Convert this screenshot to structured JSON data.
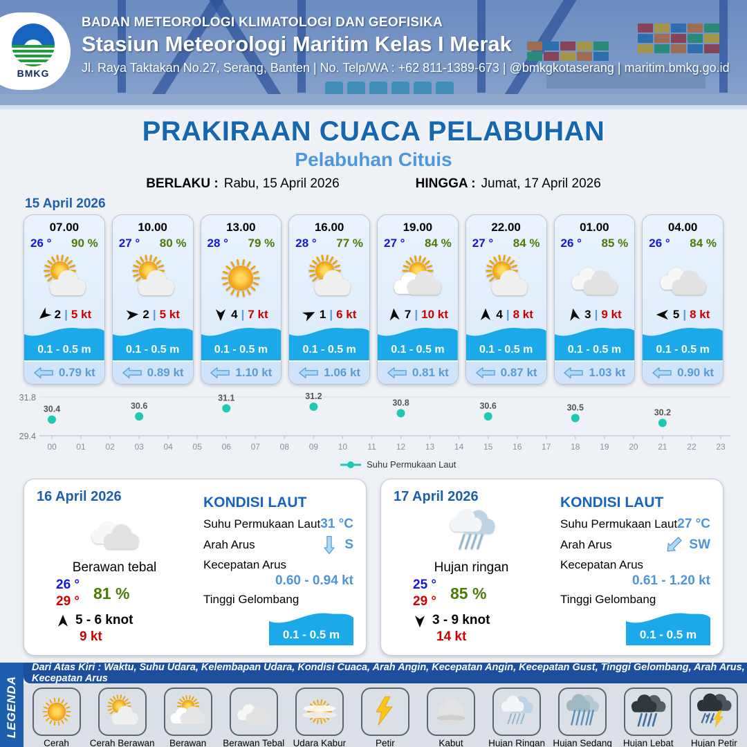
{
  "header": {
    "agency": "BADAN METEOROLOGI KLIMATOLOGI DAN GEOFISIKA",
    "station": "Stasiun Meteorologi Maritim Kelas I Merak",
    "address": "Jl. Raya Taktakan No.27, Serang, Banten | No. Telp/WA : +62 811-1389-673 | @bmkgkotaserang | maritim.bmkg.go.id",
    "logo_text": "BMKG"
  },
  "title": {
    "main": "PRAKIRAAN CUACA PELABUHAN",
    "sub": "Pelabuhan Cituis"
  },
  "validity": {
    "berlaku_label": "BERLAKU :",
    "berlaku_value": "Rabu, 15 April 2026",
    "hingga_label": "HINGGA :",
    "hingga_value": "Jumat, 17 April 2026"
  },
  "labels": {
    "wind_separator": "|"
  },
  "forecast_date": "15 April 2026",
  "forecast_cards": [
    {
      "time": "07.00",
      "temp": "26 °",
      "humidity": "90 %",
      "icon": "cerah-berawan",
      "wind_deg": 230,
      "wind_num": "2",
      "wind_speed": "5 kt",
      "wave": "0.1 - 0.5 m",
      "current": "0.79 kt"
    },
    {
      "time": "10.00",
      "temp": "27 °",
      "humidity": "80 %",
      "icon": "cerah-berawan",
      "wind_deg": 85,
      "wind_num": "2",
      "wind_speed": "5 kt",
      "wave": "0.1 - 0.5 m",
      "current": "0.89 kt"
    },
    {
      "time": "13.00",
      "temp": "28 °",
      "humidity": "79 %",
      "icon": "cerah",
      "wind_deg": 180,
      "wind_num": "4",
      "wind_speed": "7 kt",
      "wave": "0.1 - 0.5 m",
      "current": "1.10 kt"
    },
    {
      "time": "16.00",
      "temp": "28 °",
      "humidity": "77 %",
      "icon": "cerah-berawan",
      "wind_deg": 65,
      "wind_num": "1",
      "wind_speed": "6 kt",
      "wave": "0.1 - 0.5 m",
      "current": "1.06 kt"
    },
    {
      "time": "19.00",
      "temp": "27 °",
      "humidity": "84 %",
      "icon": "berawan",
      "wind_deg": 355,
      "wind_num": "7",
      "wind_speed": "10 kt",
      "wave": "0.1 - 0.5 m",
      "current": "0.81 kt"
    },
    {
      "time": "22.00",
      "temp": "27 °",
      "humidity": "84 %",
      "icon": "cerah-berawan",
      "wind_deg": 0,
      "wind_num": "4",
      "wind_speed": "8 kt",
      "wave": "0.1 - 0.5 m",
      "current": "0.87 kt"
    },
    {
      "time": "01.00",
      "temp": "26 °",
      "humidity": "85 %",
      "icon": "berawan-tebal",
      "wind_deg": 350,
      "wind_num": "3",
      "wind_speed": "9 kt",
      "wave": "0.1 - 0.5 m",
      "current": "1.03 kt"
    },
    {
      "time": "04.00",
      "temp": "26 °",
      "humidity": "84 %",
      "icon": "berawan-tebal",
      "wind_deg": 270,
      "wind_num": "5",
      "wind_speed": "8 kt",
      "wave": "0.1 - 0.5 m",
      "current": "0.90 kt"
    }
  ],
  "chart_data": {
    "type": "scatter",
    "title": "",
    "legend": "Suhu Permukaan Laut",
    "ylim": [
      29.4,
      31.8
    ],
    "x_labels": [
      "00",
      "01",
      "02",
      "03",
      "04",
      "05",
      "06",
      "07",
      "08",
      "09",
      "10",
      "11",
      "12",
      "13",
      "14",
      "15",
      "16",
      "17",
      "18",
      "19",
      "20",
      "21",
      "22",
      "23"
    ],
    "points": [
      {
        "hour": 0,
        "value": 30.4
      },
      {
        "hour": 3,
        "value": 30.6
      },
      {
        "hour": 6,
        "value": 31.1
      },
      {
        "hour": 9,
        "value": 31.2
      },
      {
        "hour": 12,
        "value": 30.8
      },
      {
        "hour": 15,
        "value": 30.6
      },
      {
        "hour": 18,
        "value": 30.5
      },
      {
        "hour": 21,
        "value": 30.2
      }
    ],
    "accent": "#1fc8b4",
    "grid": true,
    "legend_position": "bottom"
  },
  "day_summaries": [
    {
      "date": "16 April 2026",
      "icon": "berawan-tebal",
      "condition": "Berawan tebal",
      "temp_low": "26 °",
      "temp_high": "29 °",
      "humidity": "81 %",
      "wind_deg": 0,
      "wind_range": "5  - 6 knot",
      "gust": "9 kt",
      "sea": {
        "heading": "KONDISI LAUT",
        "sst_label": "Suhu Permukaan Laut",
        "sst_value": "31 °C",
        "dir_label": "Arah Arus",
        "dir_value": "S",
        "dir_deg": 180,
        "speed_label": "Kecepatan Arus",
        "speed_value": "0.60 - 0.94 kt",
        "wave_label": "Tinggi Gelombang",
        "wave_value": "0.1 - 0.5 m"
      }
    },
    {
      "date": "17 April 2026",
      "icon": "hujan-ringan",
      "condition": "Hujan ringan",
      "temp_low": "25 °",
      "temp_high": "29 °",
      "humidity": "85 %",
      "wind_deg": 180,
      "wind_range": "3  - 9 knot",
      "gust": "14 kt",
      "sea": {
        "heading": "KONDISI LAUT",
        "sst_label": "Suhu Permukaan Laut",
        "sst_value": "27 °C",
        "dir_label": "Arah Arus",
        "dir_value": "SW",
        "dir_deg": 225,
        "speed_label": "Kecepatan Arus",
        "speed_value": "0.61  - 1.20 kt",
        "wave_label": "Tinggi Gelombang",
        "wave_value": "0.1 - 0.5 m"
      }
    }
  ],
  "legend": {
    "strip": "LEGENDA",
    "note": "Dari Atas Kiri : Waktu, Suhu Udara, Kelembapan Udara, Kondisi Cuaca, Arah Angin, Kecepatan Angin, Kecepatan Gust, Tinggi Gelombang, Arah Arus, Kecepatan Arus",
    "items": [
      {
        "label": "Cerah",
        "icon": "cerah"
      },
      {
        "label": "Cerah Berawan",
        "icon": "cerah-berawan"
      },
      {
        "label": "Berawan",
        "icon": "berawan"
      },
      {
        "label": "Berawan Tebal",
        "icon": "berawan-tebal"
      },
      {
        "label": "Udara Kabur",
        "icon": "udara-kabur"
      },
      {
        "label": "Petir",
        "icon": "petir"
      },
      {
        "label": "Kabut",
        "icon": "kabut"
      },
      {
        "label": "Hujan Ringan",
        "icon": "hujan-ringan"
      },
      {
        "label": "Hujan Sedang",
        "icon": "hujan-sedang"
      },
      {
        "label": "Hujan Lebat",
        "icon": "hujan-lebat"
      },
      {
        "label": "Hujan Petir",
        "icon": "hujan-petir"
      }
    ]
  }
}
